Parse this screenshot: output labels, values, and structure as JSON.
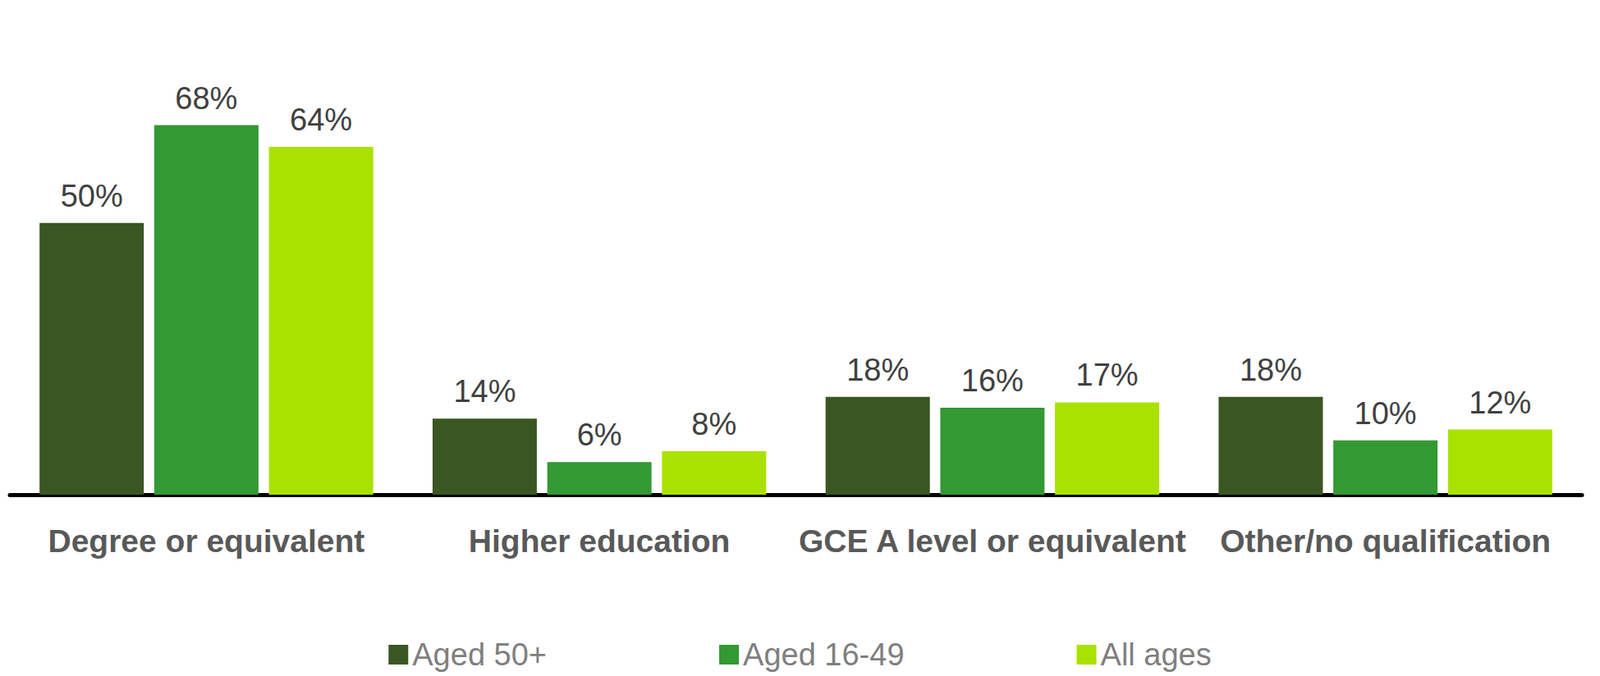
{
  "chart_data": {
    "type": "bar",
    "categories": [
      "Degree or equivalent",
      "Higher education",
      "GCE A level or equivalent",
      "Other/no qualification"
    ],
    "series": [
      {
        "name": "Aged 50+",
        "color": "#3a5623",
        "values": [
          50,
          14,
          18,
          18
        ],
        "value_labels": [
          "50%",
          "14%",
          "18%",
          "18%"
        ]
      },
      {
        "name": "Aged 16-49",
        "color": "#339933",
        "values": [
          68,
          6,
          16,
          10
        ],
        "value_labels": [
          "68%",
          "6%",
          "16%",
          "10%"
        ]
      },
      {
        "name": "All ages",
        "color": "#a9e200",
        "values": [
          64,
          8,
          17,
          12
        ],
        "value_labels": [
          "64%",
          "8%",
          "17%",
          "12%"
        ]
      }
    ],
    "ylim": [
      0,
      80
    ],
    "grid": false,
    "legend": "bottom",
    "data_labels": true,
    "tick_labels": "x"
  }
}
